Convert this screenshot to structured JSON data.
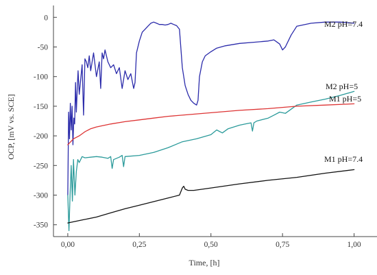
{
  "chart_data": {
    "type": "line",
    "xlabel": "Time, [h]",
    "ylabel": "OCP, [mV vs. SCE]",
    "xlim": [
      -0.05,
      1.08
    ],
    "ylim": [
      -370,
      20
    ],
    "xticks": [
      0,
      0.25,
      0.5,
      0.75,
      1
    ],
    "xtick_labels": [
      "0,00",
      "0,25",
      "0,50",
      "0,75",
      "1,00"
    ],
    "yticks": [
      0,
      -50,
      -100,
      -150,
      -200,
      -250,
      -300,
      -350
    ],
    "ytick_labels": [
      "0",
      "-50",
      "-100",
      "-150",
      "-200",
      "-250",
      "-300",
      "-350"
    ],
    "grid": false,
    "series": [
      {
        "name": "M2 pH=7.4",
        "color": "#2a2aaa",
        "x": [
          0,
          0.003,
          0.006,
          0.009,
          0.012,
          0.015,
          0.018,
          0.021,
          0.024,
          0.027,
          0.03,
          0.033,
          0.036,
          0.04,
          0.045,
          0.05,
          0.055,
          0.06,
          0.065,
          0.07,
          0.075,
          0.08,
          0.09,
          0.1,
          0.11,
          0.115,
          0.12,
          0.125,
          0.13,
          0.14,
          0.15,
          0.16,
          0.17,
          0.18,
          0.19,
          0.2,
          0.21,
          0.22,
          0.23,
          0.235,
          0.24,
          0.25,
          0.26,
          0.27,
          0.28,
          0.29,
          0.3,
          0.31,
          0.32,
          0.33,
          0.34,
          0.35,
          0.36,
          0.37,
          0.38,
          0.39,
          0.4,
          0.41,
          0.42,
          0.43,
          0.44,
          0.45,
          0.455,
          0.46,
          0.47,
          0.48,
          0.5,
          0.52,
          0.55,
          0.6,
          0.65,
          0.7,
          0.72,
          0.74,
          0.75,
          0.76,
          0.78,
          0.8,
          0.85,
          0.9,
          0.95,
          1.0
        ],
        "values": [
          -300,
          -160,
          -205,
          -145,
          -190,
          -150,
          -215,
          -170,
          -180,
          -110,
          -160,
          -120,
          -90,
          -130,
          -105,
          -80,
          -165,
          -70,
          -75,
          -85,
          -65,
          -90,
          -60,
          -100,
          -75,
          -120,
          -60,
          -70,
          -55,
          -75,
          -85,
          -80,
          -95,
          -85,
          -120,
          -90,
          -105,
          -95,
          -120,
          -110,
          -60,
          -40,
          -25,
          -20,
          -15,
          -10,
          -8,
          -10,
          -12,
          -12,
          -13,
          -12,
          -10,
          -12,
          -14,
          -20,
          -85,
          -115,
          -130,
          -140,
          -145,
          -148,
          -140,
          -100,
          -75,
          -65,
          -58,
          -52,
          -48,
          -44,
          -42,
          -40,
          -38,
          -45,
          -55,
          -50,
          -30,
          -15,
          -10,
          -8,
          -8,
          -10
        ]
      },
      {
        "name": "M2 pH=5",
        "color": "#2a9a9a",
        "x": [
          0,
          0.004,
          0.008,
          0.012,
          0.016,
          0.02,
          0.025,
          0.03,
          0.035,
          0.04,
          0.05,
          0.06,
          0.08,
          0.1,
          0.12,
          0.14,
          0.15,
          0.155,
          0.16,
          0.18,
          0.19,
          0.195,
          0.2,
          0.25,
          0.3,
          0.35,
          0.4,
          0.45,
          0.5,
          0.52,
          0.54,
          0.56,
          0.6,
          0.62,
          0.64,
          0.645,
          0.65,
          0.66,
          0.7,
          0.72,
          0.74,
          0.76,
          0.8,
          0.85,
          0.9,
          0.95,
          1.0
        ],
        "values": [
          -300,
          -360,
          -300,
          -250,
          -310,
          -240,
          -300,
          -260,
          -240,
          -245,
          -235,
          -237,
          -236,
          -235,
          -236,
          -238,
          -235,
          -255,
          -240,
          -236,
          -233,
          -252,
          -235,
          -233,
          -228,
          -220,
          -210,
          -205,
          -198,
          -190,
          -195,
          -188,
          -182,
          -180,
          -178,
          -192,
          -178,
          -175,
          -170,
          -165,
          -160,
          -162,
          -148,
          -143,
          -138,
          -132,
          -125
        ]
      },
      {
        "name": "M1 pH=5",
        "color": "#dd3333",
        "x": [
          0,
          0.02,
          0.04,
          0.06,
          0.08,
          0.1,
          0.15,
          0.2,
          0.25,
          0.3,
          0.35,
          0.4,
          0.5,
          0.6,
          0.7,
          0.8,
          0.9,
          1.0
        ],
        "values": [
          -215,
          -205,
          -200,
          -193,
          -188,
          -185,
          -180,
          -176,
          -173,
          -170,
          -167,
          -165,
          -161,
          -157,
          -154,
          -150,
          -148,
          -146
        ]
      },
      {
        "name": "M1 pH=7.4",
        "color": "#111111",
        "x": [
          0,
          0.05,
          0.1,
          0.15,
          0.2,
          0.25,
          0.3,
          0.35,
          0.39,
          0.4,
          0.405,
          0.41,
          0.42,
          0.44,
          0.5,
          0.6,
          0.7,
          0.8,
          0.9,
          1.0
        ],
        "values": [
          -347,
          -342,
          -337,
          -330,
          -323,
          -317,
          -311,
          -305,
          -300,
          -288,
          -285,
          -290,
          -292,
          -292,
          -288,
          -281,
          -275,
          -270,
          -263,
          -257
        ]
      }
    ]
  }
}
